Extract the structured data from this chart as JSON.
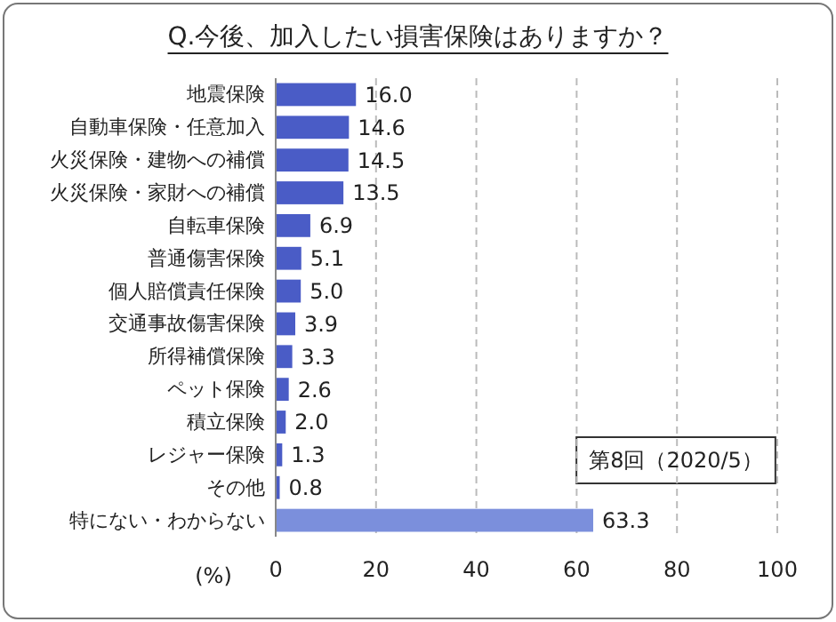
{
  "chart_data": {
    "type": "bar",
    "orientation": "horizontal",
    "title": "Q.今後、加入したい損害保険はありますか？",
    "categories": [
      "地震保険",
      "自動車保険・任意加入",
      "火災保険・建物への補償",
      "火災保険・家財への補償",
      "自転車保険",
      "普通傷害保険",
      "個人賠償責任保険",
      "交通事故傷害保険",
      "所得補償保険",
      "ペット保険",
      "積立保険",
      "レジャー保険",
      "その他",
      "特にない・わからない"
    ],
    "values": [
      16.0,
      14.6,
      14.5,
      13.5,
      6.9,
      5.1,
      5.0,
      3.9,
      3.3,
      2.6,
      2.0,
      1.3,
      0.8,
      63.3
    ],
    "value_labels": [
      "16.0",
      "14.6",
      "14.5",
      "13.5",
      "6.9",
      "5.1",
      "5.0",
      "3.9",
      "3.3",
      "2.6",
      "2.0",
      "1.3",
      "0.8",
      "63.3"
    ],
    "colors": [
      "#4a5cc6",
      "#4a5cc6",
      "#4a5cc6",
      "#4a5cc6",
      "#4a5cc6",
      "#4a5cc6",
      "#4a5cc6",
      "#4a5cc6",
      "#4a5cc6",
      "#4a5cc6",
      "#4a5cc6",
      "#4a5cc6",
      "#4a5cc6",
      "#7b8fdc"
    ],
    "xlim": [
      0,
      100
    ],
    "xticks": [
      0,
      20,
      40,
      60,
      80,
      100
    ],
    "xlabel": "(%)",
    "grid": "x",
    "annotations": [
      "第8回（2020/5）"
    ]
  }
}
